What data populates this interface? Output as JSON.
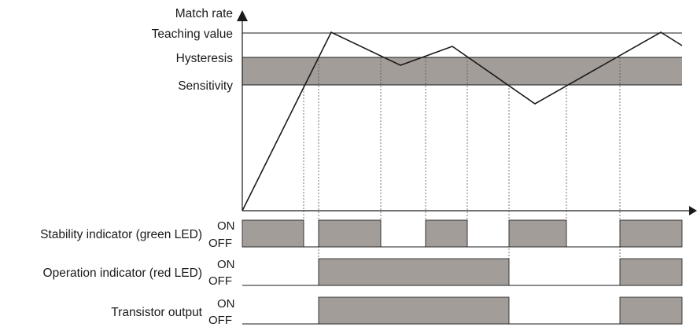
{
  "diagram": {
    "y_axis_title": "Match rate",
    "levels": [
      {
        "key": "teaching",
        "label": "Teaching value"
      },
      {
        "key": "hysteresis",
        "label": "Hysteresis"
      },
      {
        "key": "sensitivity",
        "label": "Sensitivity"
      }
    ],
    "signals": [
      {
        "key": "stability",
        "label": "Stability indicator (green LED)",
        "on": "ON",
        "off": "OFF"
      },
      {
        "key": "operation",
        "label": "Operation indicator (red LED)",
        "on": "ON",
        "off": "OFF"
      },
      {
        "key": "transistor",
        "label": "Transistor output",
        "on": "ON",
        "off": "OFF"
      }
    ],
    "colors": {
      "band_fill": "#a39d99",
      "pulse_fill": "#a39d99",
      "line": "#1a1a1a",
      "guide": "#555555"
    }
  }
}
